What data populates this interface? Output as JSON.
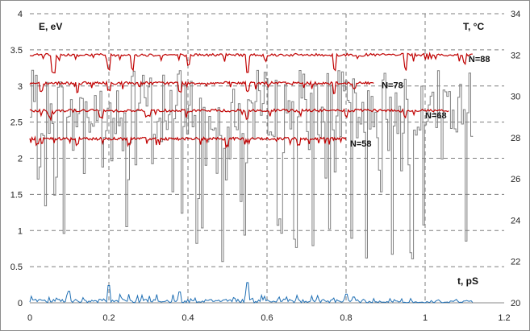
{
  "chart_data": {
    "type": "line",
    "title": "",
    "grid": true,
    "x_axis": {
      "range": [
        0,
        1.2
      ],
      "ticks": [
        0,
        0.2,
        0.4,
        0.6,
        0.8,
        1,
        1.2
      ],
      "tick_labels": [
        "0",
        "0.2",
        "0.4",
        "0.6",
        "0.8",
        "1",
        "1.2"
      ],
      "label": "t, pS"
    },
    "y_axis_left": {
      "label": "E, eV",
      "range": [
        0,
        4
      ],
      "ticks": [
        0,
        0.5,
        1,
        1.5,
        2,
        2.5,
        3,
        3.5,
        4
      ],
      "tick_labels": [
        "0",
        "0.5",
        "1",
        "1.5",
        "2",
        "2.5",
        "3",
        "3.5",
        "4"
      ]
    },
    "y_axis_right": {
      "label": "T, °C",
      "range": [
        20,
        34
      ],
      "ticks": [
        20,
        22,
        24,
        26,
        28,
        30,
        32,
        34
      ],
      "tick_labels": [
        "20",
        "22",
        "24",
        "26",
        "28",
        "30",
        "32",
        "34"
      ]
    },
    "series": [
      {
        "name": "N=88",
        "axis": "left",
        "color": "#c00000",
        "x_end": 1.12,
        "baseline": 3.43,
        "noise": 0.02,
        "dips": [
          [
            0.06,
            0.25
          ],
          [
            0.2,
            0.2
          ],
          [
            0.26,
            0.2
          ],
          [
            0.4,
            0.15
          ],
          [
            0.55,
            0.25
          ],
          [
            0.77,
            0.2
          ],
          [
            0.95,
            0.15
          ],
          [
            1.1,
            0.12
          ]
        ],
        "label_at": [
          1.11,
          3.33
        ]
      },
      {
        "name": "N=78",
        "axis": "left",
        "color": "#c00000",
        "x_end": 0.87,
        "baseline": 3.04,
        "noise": 0.02,
        "dips": [
          [
            0.03,
            0.1
          ],
          [
            0.12,
            0.12
          ],
          [
            0.2,
            0.1
          ],
          [
            0.38,
            0.12
          ],
          [
            0.55,
            0.1
          ],
          [
            0.77,
            0.15
          ],
          [
            0.82,
            0.08
          ]
        ],
        "label_at": [
          0.89,
          2.97
        ]
      },
      {
        "name": "N=68",
        "axis": "left",
        "color": "#c00000",
        "x_end": 1.06,
        "baseline": 2.66,
        "noise": 0.02,
        "dips": [
          [
            0.05,
            0.08
          ],
          [
            0.18,
            0.1
          ],
          [
            0.3,
            0.08
          ],
          [
            0.55,
            0.12
          ],
          [
            0.8,
            0.08
          ],
          [
            0.95,
            0.08
          ]
        ],
        "label_at": [
          1.0,
          2.55
        ]
      },
      {
        "name": "N=58",
        "axis": "left",
        "color": "#c00000",
        "x_end": 0.8,
        "baseline": 2.27,
        "noise": 0.02,
        "dips": [
          [
            0.02,
            0.08
          ],
          [
            0.12,
            0.08
          ],
          [
            0.25,
            0.08
          ],
          [
            0.5,
            0.1
          ],
          [
            0.68,
            0.08
          ]
        ],
        "label_at": [
          0.81,
          2.16
        ]
      },
      {
        "name": "",
        "axis": "right",
        "color": "#808080",
        "style": "step",
        "x_start": 0.0,
        "x_end": 1.12,
        "low": 22,
        "high": 31.3,
        "mean": 29.0
      },
      {
        "name": "",
        "axis": "left",
        "color": "#1f6fb4",
        "style": "spiky",
        "x_end": 1.12,
        "max": 0.28,
        "spikes": [
          [
            0.2,
            0.24
          ],
          [
            0.55,
            0.28
          ],
          [
            0.38,
            0.15
          ],
          [
            0.1,
            0.16
          ],
          [
            0.8,
            0.12
          ]
        ]
      }
    ]
  }
}
